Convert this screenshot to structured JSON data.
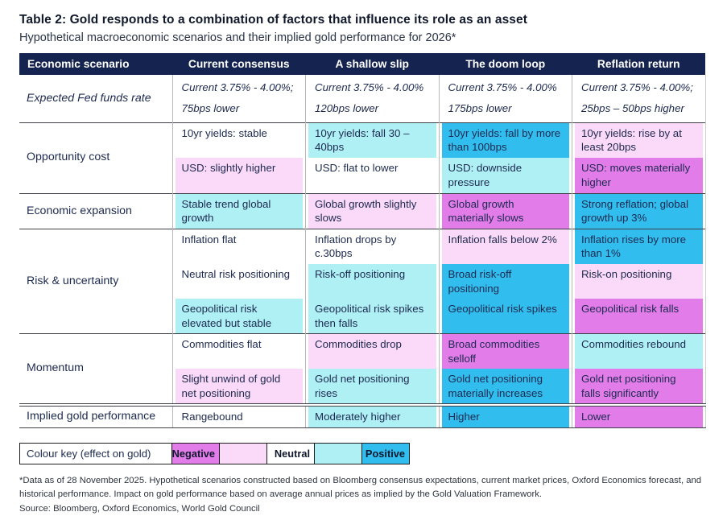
{
  "page": {
    "title": "Table 2: Gold responds to a combination of factors that influence its role as an asset",
    "subtitle": "Hypothetical macroeconomic scenarios and their implied gold performance for 2026*"
  },
  "colors": {
    "header_bg": "#142350",
    "negative_strong": "#e17ce9",
    "negative_mild": "#fbd9f8",
    "neutral": "#ffffff",
    "positive_mild": "#aff0f5",
    "positive_strong": "#31bdee"
  },
  "table": {
    "columns": [
      "Economic scenario",
      "Current consensus",
      "A shallow slip",
      "The doom loop",
      "Reflation return"
    ],
    "rows": [
      {
        "label": "Expected Fed funds rate",
        "italic": true,
        "subrows": [
          [
            {
              "text": "Current 3.75% - 4.00%;\n75bps lower",
              "tone": "neutral"
            },
            {
              "text": "Current 3.75% - 4.00%\n120bps lower",
              "tone": "neutral"
            },
            {
              "text": "Current 3.75% - 4.00%\n175bps lower",
              "tone": "neutral"
            },
            {
              "text": "Current 3.75% - 4.00%;\n25bps – 50bps higher",
              "tone": "neutral"
            }
          ]
        ]
      },
      {
        "label": "Opportunity cost",
        "subrows": [
          [
            {
              "text": "10yr yields: stable",
              "tone": "neutral"
            },
            {
              "text": "10yr yields: fall 30 – 40bps",
              "tone": "positive_mild"
            },
            {
              "text": "10yr yields: fall by more than 100bps",
              "tone": "positive_strong"
            },
            {
              "text": "10yr yields: rise by at least 20bps",
              "tone": "negative_mild"
            }
          ],
          [
            {
              "text": "USD: slightly higher",
              "tone": "negative_mild"
            },
            {
              "text": "USD: flat to lower",
              "tone": "neutral"
            },
            {
              "text": "USD: downside pressure",
              "tone": "positive_mild"
            },
            {
              "text": "USD: moves materially higher",
              "tone": "negative_strong"
            }
          ]
        ]
      },
      {
        "label": "Economic expansion",
        "subrows": [
          [
            {
              "text": "Stable trend global growth",
              "tone": "positive_mild"
            },
            {
              "text": "Global growth slightly slows",
              "tone": "negative_mild"
            },
            {
              "text": "Global growth materially slows",
              "tone": "negative_strong"
            },
            {
              "text": "Strong reflation; global growth up 3%",
              "tone": "positive_strong"
            }
          ]
        ]
      },
      {
        "label": "Risk & uncertainty",
        "subrows": [
          [
            {
              "text": "Inflation flat",
              "tone": "neutral"
            },
            {
              "text": "Inflation drops by c.30bps",
              "tone": "neutral"
            },
            {
              "text": "Inflation falls below 2%",
              "tone": "negative_mild"
            },
            {
              "text": "Inflation rises by more than 1%",
              "tone": "positive_strong"
            }
          ],
          [
            {
              "text": "Neutral risk positioning",
              "tone": "neutral"
            },
            {
              "text": "Risk-off positioning",
              "tone": "positive_mild"
            },
            {
              "text": "Broad risk-off positioning",
              "tone": "positive_strong"
            },
            {
              "text": "Risk-on positioning",
              "tone": "negative_mild"
            }
          ],
          [
            {
              "text": "Geopolitical risk elevated but stable",
              "tone": "positive_mild"
            },
            {
              "text": "Geopolitical risk spikes then falls",
              "tone": "positive_mild"
            },
            {
              "text": "Geopolitical risk spikes",
              "tone": "positive_strong"
            },
            {
              "text": "Geopolitical risk falls",
              "tone": "negative_strong"
            }
          ]
        ]
      },
      {
        "label": "Momentum",
        "subrows": [
          [
            {
              "text": "Commodities flat",
              "tone": "neutral"
            },
            {
              "text": "Commodities drop",
              "tone": "negative_mild"
            },
            {
              "text": "Broad commodities selloff",
              "tone": "negative_strong"
            },
            {
              "text": "Commodities rebound",
              "tone": "positive_mild"
            }
          ],
          [
            {
              "text": "Slight unwind of gold net positioning",
              "tone": "negative_mild"
            },
            {
              "text": "Gold net positioning rises",
              "tone": "positive_mild"
            },
            {
              "text": "Gold net positioning materially increases",
              "tone": "positive_strong"
            },
            {
              "text": "Gold net positioning falls significantly",
              "tone": "negative_strong"
            }
          ]
        ]
      },
      {
        "label": "Implied gold performance",
        "heavy_top": true,
        "subrows": [
          [
            {
              "text": "Rangebound",
              "tone": "neutral"
            },
            {
              "text": "Moderately higher",
              "tone": "positive_mild"
            },
            {
              "text": "Higher",
              "tone": "positive_strong"
            },
            {
              "text": "Lower",
              "tone": "negative_strong"
            }
          ]
        ]
      }
    ]
  },
  "key": {
    "label": "Colour key (effect on gold)",
    "items": [
      {
        "label": "Negative",
        "tone": "negative_strong"
      },
      {
        "label": "",
        "tone": "negative_mild"
      },
      {
        "label": "Neutral",
        "tone": "neutral"
      },
      {
        "label": "",
        "tone": "positive_mild"
      },
      {
        "label": "Positive",
        "tone": "positive_strong"
      }
    ]
  },
  "footnotes": {
    "data_note": "*Data as of 28 November 2025. Hypothetical scenarios constructed based on Bloomberg consensus expectations, current market prices, Oxford Economics forecast, and historical performance. Impact on gold performance based on average annual prices as implied by the Gold Valuation Framework.",
    "source": "Source: Bloomberg, Oxford Economics, World Gold Council"
  }
}
